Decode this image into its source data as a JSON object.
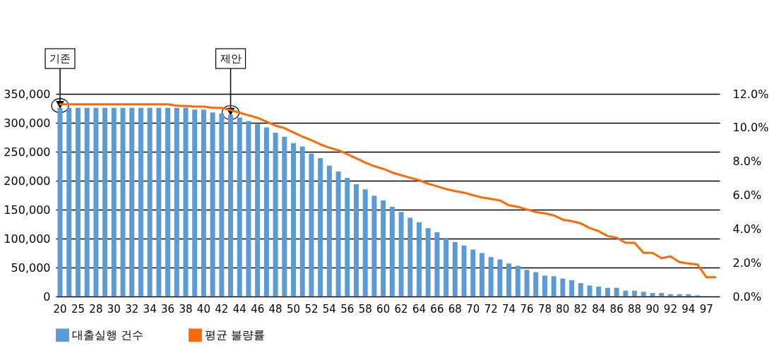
{
  "chart_data": {
    "type": "bar",
    "categories": [
      "20",
      null,
      "25",
      null,
      "28",
      null,
      "30",
      null,
      "32",
      null,
      "34",
      null,
      "36",
      null,
      "38",
      null,
      "40",
      null,
      "42",
      null,
      "44",
      null,
      "46",
      null,
      "48",
      null,
      "50",
      null,
      "52",
      null,
      "54",
      null,
      "56",
      null,
      "58",
      null,
      "60",
      null,
      "62",
      null,
      "64",
      null,
      "66",
      null,
      "68",
      null,
      "70",
      null,
      "72",
      null,
      "74",
      null,
      "76",
      null,
      "78",
      null,
      "80",
      null,
      "82",
      null,
      "84",
      null,
      "86",
      null,
      "88",
      null,
      "90",
      null,
      "92",
      null,
      "94",
      null,
      "97",
      null
    ],
    "series": [
      {
        "name": "대출실행 건수",
        "color": "#5b9bd5",
        "values": [
          326000,
          326000,
          326000,
          326000,
          326000,
          326000,
          326000,
          326000,
          326000,
          326000,
          326000,
          326000,
          326000,
          326000,
          326000,
          323000,
          323000,
          318000,
          316000,
          314000,
          309000,
          303000,
          298000,
          292000,
          283000,
          276000,
          265000,
          259000,
          247000,
          239000,
          226000,
          216000,
          205000,
          194000,
          185000,
          174000,
          166000,
          155000,
          146000,
          136000,
          128000,
          118000,
          111000,
          101000,
          94000,
          88000,
          81000,
          75000,
          68000,
          64000,
          57000,
          53000,
          46000,
          42000,
          36000,
          35000,
          31000,
          28000,
          23000,
          19000,
          17000,
          15000,
          15000,
          10000,
          10000,
          8000,
          6000,
          6000,
          4000,
          4000,
          4000,
          2000,
          null,
          null
        ]
      },
      {
        "name": "평균 불량률",
        "type": "line",
        "axis": "y2",
        "color": "#ff6a00",
        "values": [
          11.38,
          11.38,
          11.38,
          11.38,
          11.38,
          11.38,
          11.38,
          11.38,
          11.38,
          11.38,
          11.38,
          11.38,
          11.38,
          11.3,
          11.28,
          11.25,
          11.25,
          11.17,
          11.17,
          11.04,
          10.88,
          10.73,
          10.58,
          10.35,
          10.12,
          9.97,
          9.72,
          9.47,
          9.26,
          9.01,
          8.81,
          8.66,
          8.43,
          8.18,
          7.93,
          7.72,
          7.56,
          7.34,
          7.18,
          7.03,
          6.88,
          6.68,
          6.53,
          6.36,
          6.24,
          6.15,
          6.0,
          5.86,
          5.78,
          5.69,
          5.4,
          5.31,
          5.15,
          5.0,
          4.92,
          4.8,
          4.55,
          4.46,
          4.33,
          4.05,
          3.87,
          3.58,
          3.48,
          3.18,
          3.18,
          2.58,
          2.58,
          2.27,
          2.37,
          2.04,
          1.95,
          1.89,
          1.14,
          1.14
        ]
      }
    ],
    "ylim": [
      0,
      350000
    ],
    "yticks": [
      0,
      {
        "value": 50000,
        "label": "50,000"
      },
      {
        "value": 100000,
        "label": "100,000"
      },
      {
        "value": 150000,
        "label": "150,000"
      },
      {
        "value": 200000,
        "label": "200,000"
      },
      {
        "value": 250000,
        "label": "250,000"
      },
      {
        "value": 300000,
        "label": "300,000"
      },
      {
        "value": 350000,
        "label": "350,000"
      }
    ],
    "y2lim": [
      0,
      12
    ],
    "y2ticks": [
      {
        "value": 0,
        "label": "0.0%"
      },
      {
        "value": 2,
        "label": "2.0%"
      },
      {
        "value": 4,
        "label": "4.0%"
      },
      {
        "value": 6,
        "label": "6.0%"
      },
      {
        "value": 8,
        "label": "8.0%"
      },
      {
        "value": 10,
        "label": "10.0%"
      },
      {
        "value": 12,
        "label": "12.0%"
      }
    ],
    "grid": "y",
    "legend": "bottom",
    "annotations": [
      {
        "text": "기존",
        "x": "20",
        "y": 326000
      },
      {
        "text": "제안",
        "y": 314000
      }
    ]
  }
}
